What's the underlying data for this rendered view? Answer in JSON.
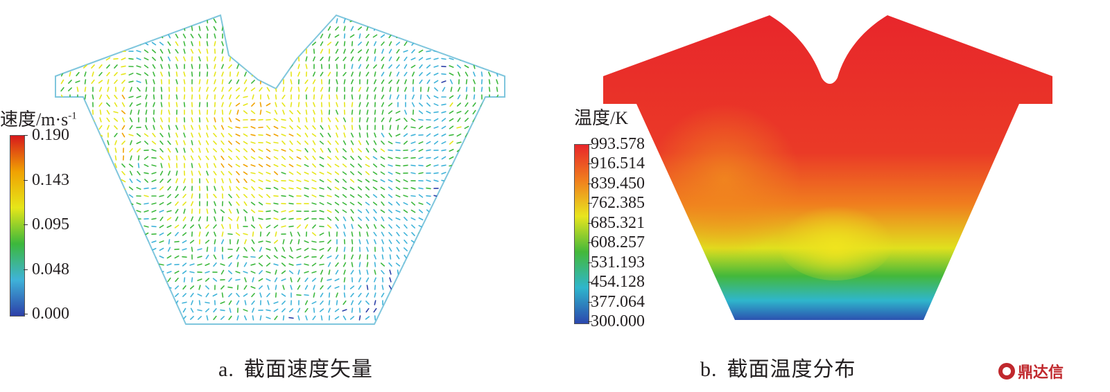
{
  "panel_a": {
    "legend_title": "速度/m·s",
    "legend_title_sup": "-1",
    "ticks": [
      "0.190",
      "0.143",
      "0.095",
      "0.048",
      "0.000"
    ],
    "caption_prefix": "a.",
    "caption": "截面速度矢量",
    "colormap": [
      "#d7191c",
      "#f0a202",
      "#e6e619",
      "#3cb83c",
      "#3fb3d9",
      "#2c3fa8"
    ]
  },
  "panel_b": {
    "legend_title": "温度/K",
    "ticks": [
      "993.578",
      "916.514",
      "839.450",
      "762.385",
      "685.321",
      "608.257",
      "531.193",
      "454.128",
      "377.064",
      "300.000"
    ],
    "caption_prefix": "b.",
    "caption": "截面温度分布",
    "colormap": [
      "#e8262b",
      "#f07f1e",
      "#e8e51e",
      "#44b83a",
      "#2fb6cc",
      "#2b47ad"
    ]
  },
  "watermark": "鼎达信"
}
